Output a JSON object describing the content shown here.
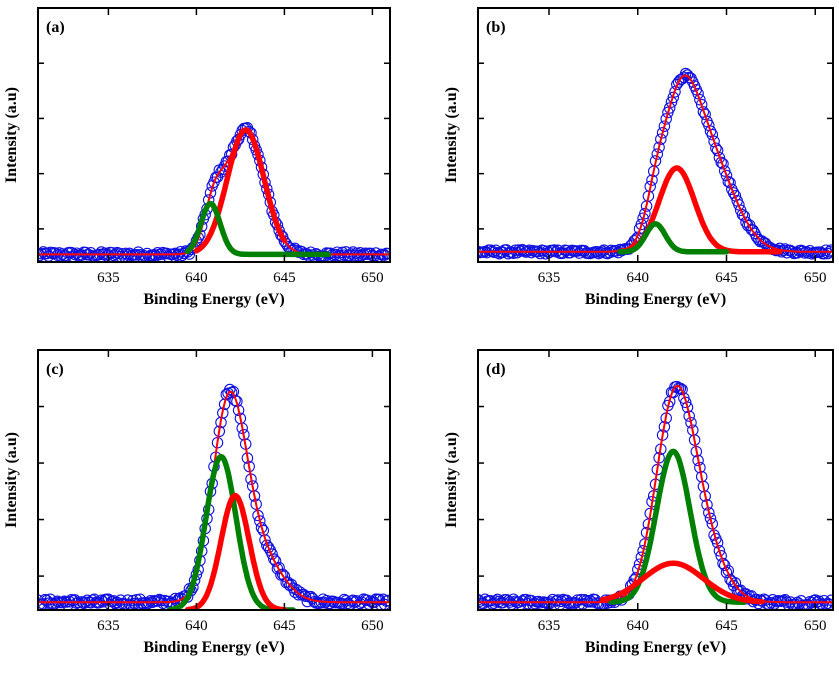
{
  "chart_data": [
    {
      "type": "line",
      "panel_label": "(a)",
      "xlabel": "Binding Energy (eV)",
      "ylabel": "Intensity (a.u)",
      "xlim": [
        631,
        651
      ],
      "ylim": [
        0,
        1.0
      ],
      "xticks": [
        635,
        640,
        645,
        650
      ],
      "x_tick_labels": [
        "635",
        "640",
        "645",
        "650"
      ],
      "grid": false,
      "legend": "none",
      "series": [
        {
          "role": "experimental-circles",
          "color": "#1010e0",
          "baseline": 0.03,
          "noise": 0.01,
          "peaks": [
            {
              "center": 641.0,
              "height": 0.17,
              "sigma": 0.55
            },
            {
              "center": 642.8,
              "height": 0.49,
              "sigma": 1.05
            }
          ]
        },
        {
          "role": "envelope-fit",
          "color": "#ff0000",
          "baseline": 0.03,
          "peaks": [
            {
              "center": 641.0,
              "height": 0.17,
              "sigma": 0.55
            },
            {
              "center": 642.8,
              "height": 0.49,
              "sigma": 1.05
            }
          ]
        },
        {
          "role": "component-red",
          "color": "#ff0000",
          "baseline": 0.03,
          "peaks": [
            {
              "center": 642.8,
              "height": 0.49,
              "sigma": 1.05
            }
          ],
          "xrange": [
            640,
            645
          ]
        },
        {
          "role": "component-green",
          "color": "#008000",
          "baseline": 0.03,
          "peaks": [
            {
              "center": 640.8,
              "height": 0.2,
              "sigma": 0.55
            }
          ],
          "xrange": [
            639.5,
            647.5
          ]
        }
      ]
    },
    {
      "type": "line",
      "panel_label": "(b)",
      "xlabel": "Binding Energy (eV)",
      "ylabel": "Intensity (a.u)",
      "xlim": [
        631,
        651
      ],
      "ylim": [
        0,
        1.0
      ],
      "xticks": [
        635,
        640,
        645,
        650
      ],
      "x_tick_labels": [
        "635",
        "640",
        "645",
        "650"
      ],
      "grid": false,
      "legend": "none",
      "series": [
        {
          "role": "experimental-circles",
          "color": "#1010e0",
          "baseline": 0.04,
          "noise": 0.008,
          "peaks": [
            {
              "center": 641.0,
              "height": 0.1,
              "sigma": 0.55
            },
            {
              "center": 642.3,
              "height": 0.42,
              "sigma": 1.0
            },
            {
              "center": 643.8,
              "height": 0.4,
              "sigma": 1.5
            }
          ]
        },
        {
          "role": "envelope-fit",
          "color": "#ff0000",
          "baseline": 0.04,
          "peaks": [
            {
              "center": 641.0,
              "height": 0.1,
              "sigma": 0.55
            },
            {
              "center": 642.3,
              "height": 0.42,
              "sigma": 1.0
            },
            {
              "center": 643.8,
              "height": 0.4,
              "sigma": 1.5
            }
          ]
        },
        {
          "role": "component-red",
          "color": "#ff0000",
          "baseline": 0.04,
          "peaks": [
            {
              "center": 642.2,
              "height": 0.33,
              "sigma": 1.0
            }
          ],
          "xrange": [
            639,
            648
          ]
        },
        {
          "role": "component-green",
          "color": "#008000",
          "baseline": 0.04,
          "peaks": [
            {
              "center": 641.0,
              "height": 0.11,
              "sigma": 0.55
            }
          ],
          "xrange": [
            639,
            645
          ]
        }
      ]
    },
    {
      "type": "line",
      "panel_label": "(c)",
      "xlabel": "Binding Energy (eV)",
      "ylabel": "Intensity (a.u)",
      "xlim": [
        631,
        651
      ],
      "ylim": [
        0,
        1.0
      ],
      "xticks": [
        635,
        640,
        645,
        650
      ],
      "x_tick_labels": [
        "635",
        "640",
        "645",
        "650"
      ],
      "grid": false,
      "legend": "none",
      "series": [
        {
          "role": "experimental-circles",
          "color": "#1010e0",
          "baseline": 0.03,
          "noise": 0.012,
          "peaks": [
            {
              "center": 641.5,
              "height": 0.46,
              "sigma": 0.85
            },
            {
              "center": 642.3,
              "height": 0.37,
              "sigma": 0.85
            },
            {
              "center": 643.6,
              "height": 0.18,
              "sigma": 1.2
            }
          ]
        },
        {
          "role": "envelope-fit",
          "color": "#ff0000",
          "baseline": 0.03,
          "peaks": [
            {
              "center": 641.5,
              "height": 0.46,
              "sigma": 0.85
            },
            {
              "center": 642.3,
              "height": 0.37,
              "sigma": 0.85
            },
            {
              "center": 643.6,
              "height": 0.18,
              "sigma": 1.2
            }
          ]
        },
        {
          "role": "component-green",
          "color": "#008000",
          "baseline": 0.0,
          "peaks": [
            {
              "center": 641.4,
              "height": 0.59,
              "sigma": 0.85
            }
          ],
          "xrange": [
            638.5,
            645.5
          ]
        },
        {
          "role": "component-red",
          "color": "#ff0000",
          "baseline": 0.0,
          "peaks": [
            {
              "center": 642.2,
              "height": 0.44,
              "sigma": 0.8
            }
          ],
          "xrange": [
            639.5,
            645
          ]
        }
      ]
    },
    {
      "type": "line",
      "panel_label": "(d)",
      "xlabel": "Binding Energy (eV)",
      "ylabel": "Intensity (a.u)",
      "xlim": [
        631,
        651
      ],
      "ylim": [
        0,
        1.0
      ],
      "xticks": [
        635,
        640,
        645,
        650
      ],
      "x_tick_labels": [
        "635",
        "640",
        "645",
        "650"
      ],
      "grid": false,
      "legend": "none",
      "series": [
        {
          "role": "experimental-circles",
          "color": "#1010e0",
          "baseline": 0.03,
          "noise": 0.012,
          "peaks": [
            {
              "center": 642.0,
              "height": 0.62,
              "sigma": 1.05
            },
            {
              "center": 643.2,
              "height": 0.3,
              "sigma": 1.3
            }
          ]
        },
        {
          "role": "envelope-fit",
          "color": "#ff0000",
          "baseline": 0.03,
          "peaks": [
            {
              "center": 642.0,
              "height": 0.62,
              "sigma": 1.05
            },
            {
              "center": 643.2,
              "height": 0.3,
              "sigma": 1.3
            }
          ]
        },
        {
          "role": "component-green",
          "color": "#008000",
          "baseline": 0.03,
          "peaks": [
            {
              "center": 642.0,
              "height": 0.58,
              "sigma": 0.95
            }
          ],
          "xrange": [
            638.5,
            646
          ]
        },
        {
          "role": "component-red",
          "color": "#ff0000",
          "baseline": 0.03,
          "peaks": [
            {
              "center": 642.0,
              "height": 0.15,
              "sigma": 1.7
            }
          ],
          "xrange": [
            638,
            647
          ]
        }
      ]
    }
  ]
}
